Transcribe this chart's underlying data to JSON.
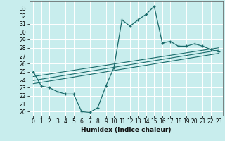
{
  "title": "",
  "xlabel": "Humidex (Indice chaleur)",
  "bg_color": "#c8eded",
  "grid_color": "#ffffff",
  "line_color": "#1a6b6b",
  "xlim": [
    -0.5,
    23.5
  ],
  "ylim": [
    19.5,
    33.8
  ],
  "xticks": [
    0,
    1,
    2,
    3,
    4,
    5,
    6,
    7,
    8,
    9,
    10,
    11,
    12,
    13,
    14,
    15,
    16,
    17,
    18,
    19,
    20,
    21,
    22,
    23
  ],
  "yticks": [
    20,
    21,
    22,
    23,
    24,
    25,
    26,
    27,
    28,
    29,
    30,
    31,
    32,
    33
  ],
  "main_x": [
    0,
    1,
    2,
    3,
    4,
    5,
    6,
    7,
    8,
    9,
    10,
    11,
    12,
    13,
    14,
    15,
    16,
    17,
    18,
    19,
    20,
    21,
    22,
    23
  ],
  "main_y": [
    25.0,
    23.2,
    23.0,
    22.5,
    22.2,
    22.2,
    20.0,
    19.9,
    20.5,
    23.2,
    25.5,
    31.5,
    30.7,
    31.5,
    32.2,
    33.2,
    28.6,
    28.8,
    28.2,
    28.2,
    28.5,
    28.2,
    27.8,
    27.5
  ],
  "line2_x": [
    0,
    23
  ],
  "line2_y": [
    23.5,
    27.3
  ],
  "line3_x": [
    0,
    23
  ],
  "line3_y": [
    23.9,
    27.7
  ],
  "line4_x": [
    0,
    23
  ],
  "line4_y": [
    24.4,
    28.0
  ],
  "tick_fontsize": 5.5,
  "xlabel_fontsize": 6.5
}
